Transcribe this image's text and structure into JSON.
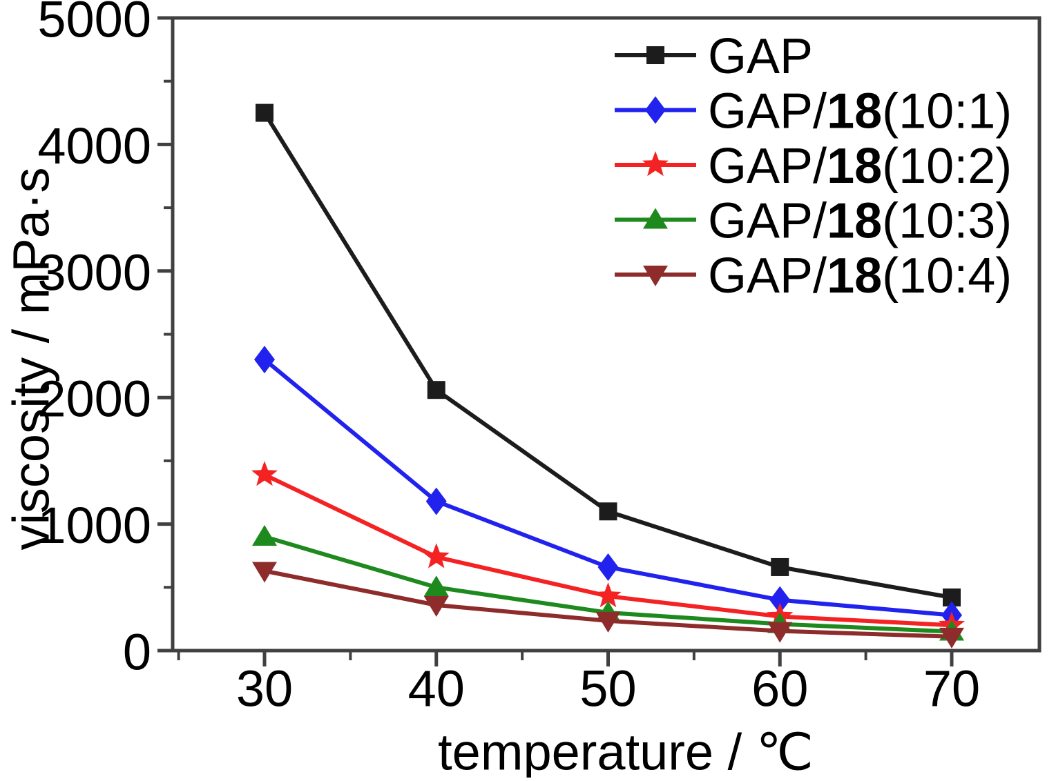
{
  "chart_data": {
    "type": "line",
    "title": "",
    "xlabel": "temperature / ℃",
    "ylabel": "viscosity / mPa·s",
    "x": [
      30,
      40,
      50,
      60,
      70
    ],
    "xlim": [
      24.7,
      75.3
    ],
    "ylim": [
      0,
      5000
    ],
    "x_major_ticks": [
      30,
      40,
      50,
      60,
      70
    ],
    "x_minor_ticks": [
      25,
      35,
      45,
      55,
      65
    ],
    "y_major_ticks": [
      0,
      1000,
      2000,
      3000,
      4000,
      5000
    ],
    "y_minor_ticks": [
      500,
      1500,
      2500,
      3500,
      4500
    ],
    "grid": false,
    "legend_position": "top-right-inside",
    "axis_color": "#404040",
    "series": [
      {
        "name": "GAP",
        "label_parts": [
          "GAP",
          "",
          ""
        ],
        "marker": "square",
        "color": "#1c1c1c",
        "values": [
          4250,
          2060,
          1100,
          660,
          420
        ]
      },
      {
        "name": "GAP/18(10:1)",
        "label_parts": [
          "GAP/",
          "18",
          "(10:1)"
        ],
        "marker": "diamond",
        "color": "#2222ee",
        "values": [
          2300,
          1180,
          660,
          400,
          280
        ]
      },
      {
        "name": "GAP/18(10:2)",
        "label_parts": [
          "GAP/",
          "18",
          "(10:2)"
        ],
        "marker": "star",
        "color": "#f42222",
        "values": [
          1390,
          740,
          430,
          270,
          200
        ]
      },
      {
        "name": "GAP/18(10:3)",
        "label_parts": [
          "GAP/",
          "18",
          "(10:3)"
        ],
        "marker": "triangle-up",
        "color": "#1e8a1e",
        "values": [
          900,
          500,
          300,
          210,
          150
        ]
      },
      {
        "name": "GAP/18(10:4)",
        "label_parts": [
          "GAP/",
          "18",
          "(10:4)"
        ],
        "marker": "triangle-down",
        "color": "#8e2b2b",
        "values": [
          630,
          360,
          235,
          155,
          110
        ]
      }
    ]
  }
}
